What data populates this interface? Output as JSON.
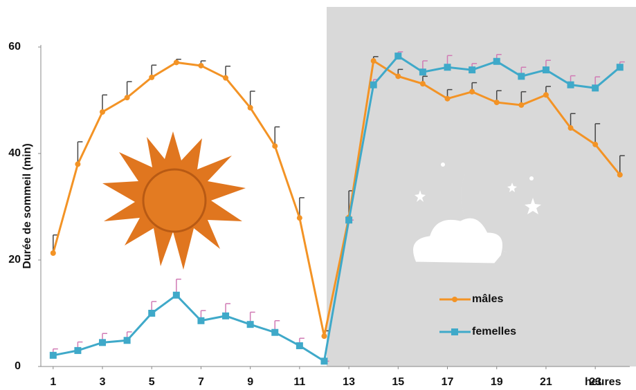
{
  "chart_data": {
    "type": "line",
    "y_label": "Durée de sommeil (min)",
    "x_unit_label": "heures",
    "x": [
      1,
      2,
      3,
      4,
      5,
      6,
      7,
      8,
      9,
      10,
      11,
      12,
      13,
      14,
      15,
      16,
      17,
      18,
      19,
      20,
      21,
      22,
      23,
      24
    ],
    "xlim": [
      0.5,
      24.4
    ],
    "xticks": [
      1,
      3,
      5,
      7,
      9,
      11,
      13,
      15,
      17,
      19,
      21,
      23
    ],
    "ylim": [
      0,
      60
    ],
    "yticks": [
      0,
      20,
      40,
      60
    ],
    "legend": "lower right",
    "series": [
      {
        "name": "mâles",
        "color": "#f39325",
        "error_color": "#444444",
        "marker": "circle",
        "values": [
          21.3,
          38,
          47.8,
          50.5,
          54.3,
          57.1,
          56.5,
          54.2,
          48.6,
          41.4,
          27.9,
          5.7,
          28,
          57.4,
          54.5,
          53.1,
          50.3,
          51.6,
          49.6,
          49.1,
          51,
          44.8,
          41.7,
          36
        ],
        "errors": [
          3.4,
          4.2,
          3.2,
          3,
          2.3,
          0.6,
          0.9,
          2.2,
          3.1,
          3.6,
          3.8,
          1,
          5,
          0.8,
          1.3,
          1.4,
          1.7,
          1.7,
          2.2,
          2.5,
          1.6,
          2.7,
          3.9,
          3.6
        ]
      },
      {
        "name": "femelles",
        "color": "#3fa9c9",
        "error_color": "#d07ab4",
        "marker": "square",
        "values": [
          2.1,
          3,
          4.5,
          4.9,
          10,
          13.4,
          8.6,
          9.5,
          7.9,
          6.4,
          3.9,
          1,
          27.5,
          52.9,
          58.3,
          55.3,
          56.2,
          55.7,
          57.3,
          54.5,
          55.7,
          52.9,
          52.3,
          56.2
        ],
        "errors": [
          1.2,
          1.6,
          1.7,
          1.6,
          2.2,
          3,
          1.9,
          2.3,
          2.3,
          2.2,
          1.4,
          0,
          0,
          1,
          0.8,
          2.1,
          2.2,
          1.2,
          1.3,
          1.7,
          1.8,
          1.7,
          2.1,
          1
        ]
      }
    ]
  }
}
